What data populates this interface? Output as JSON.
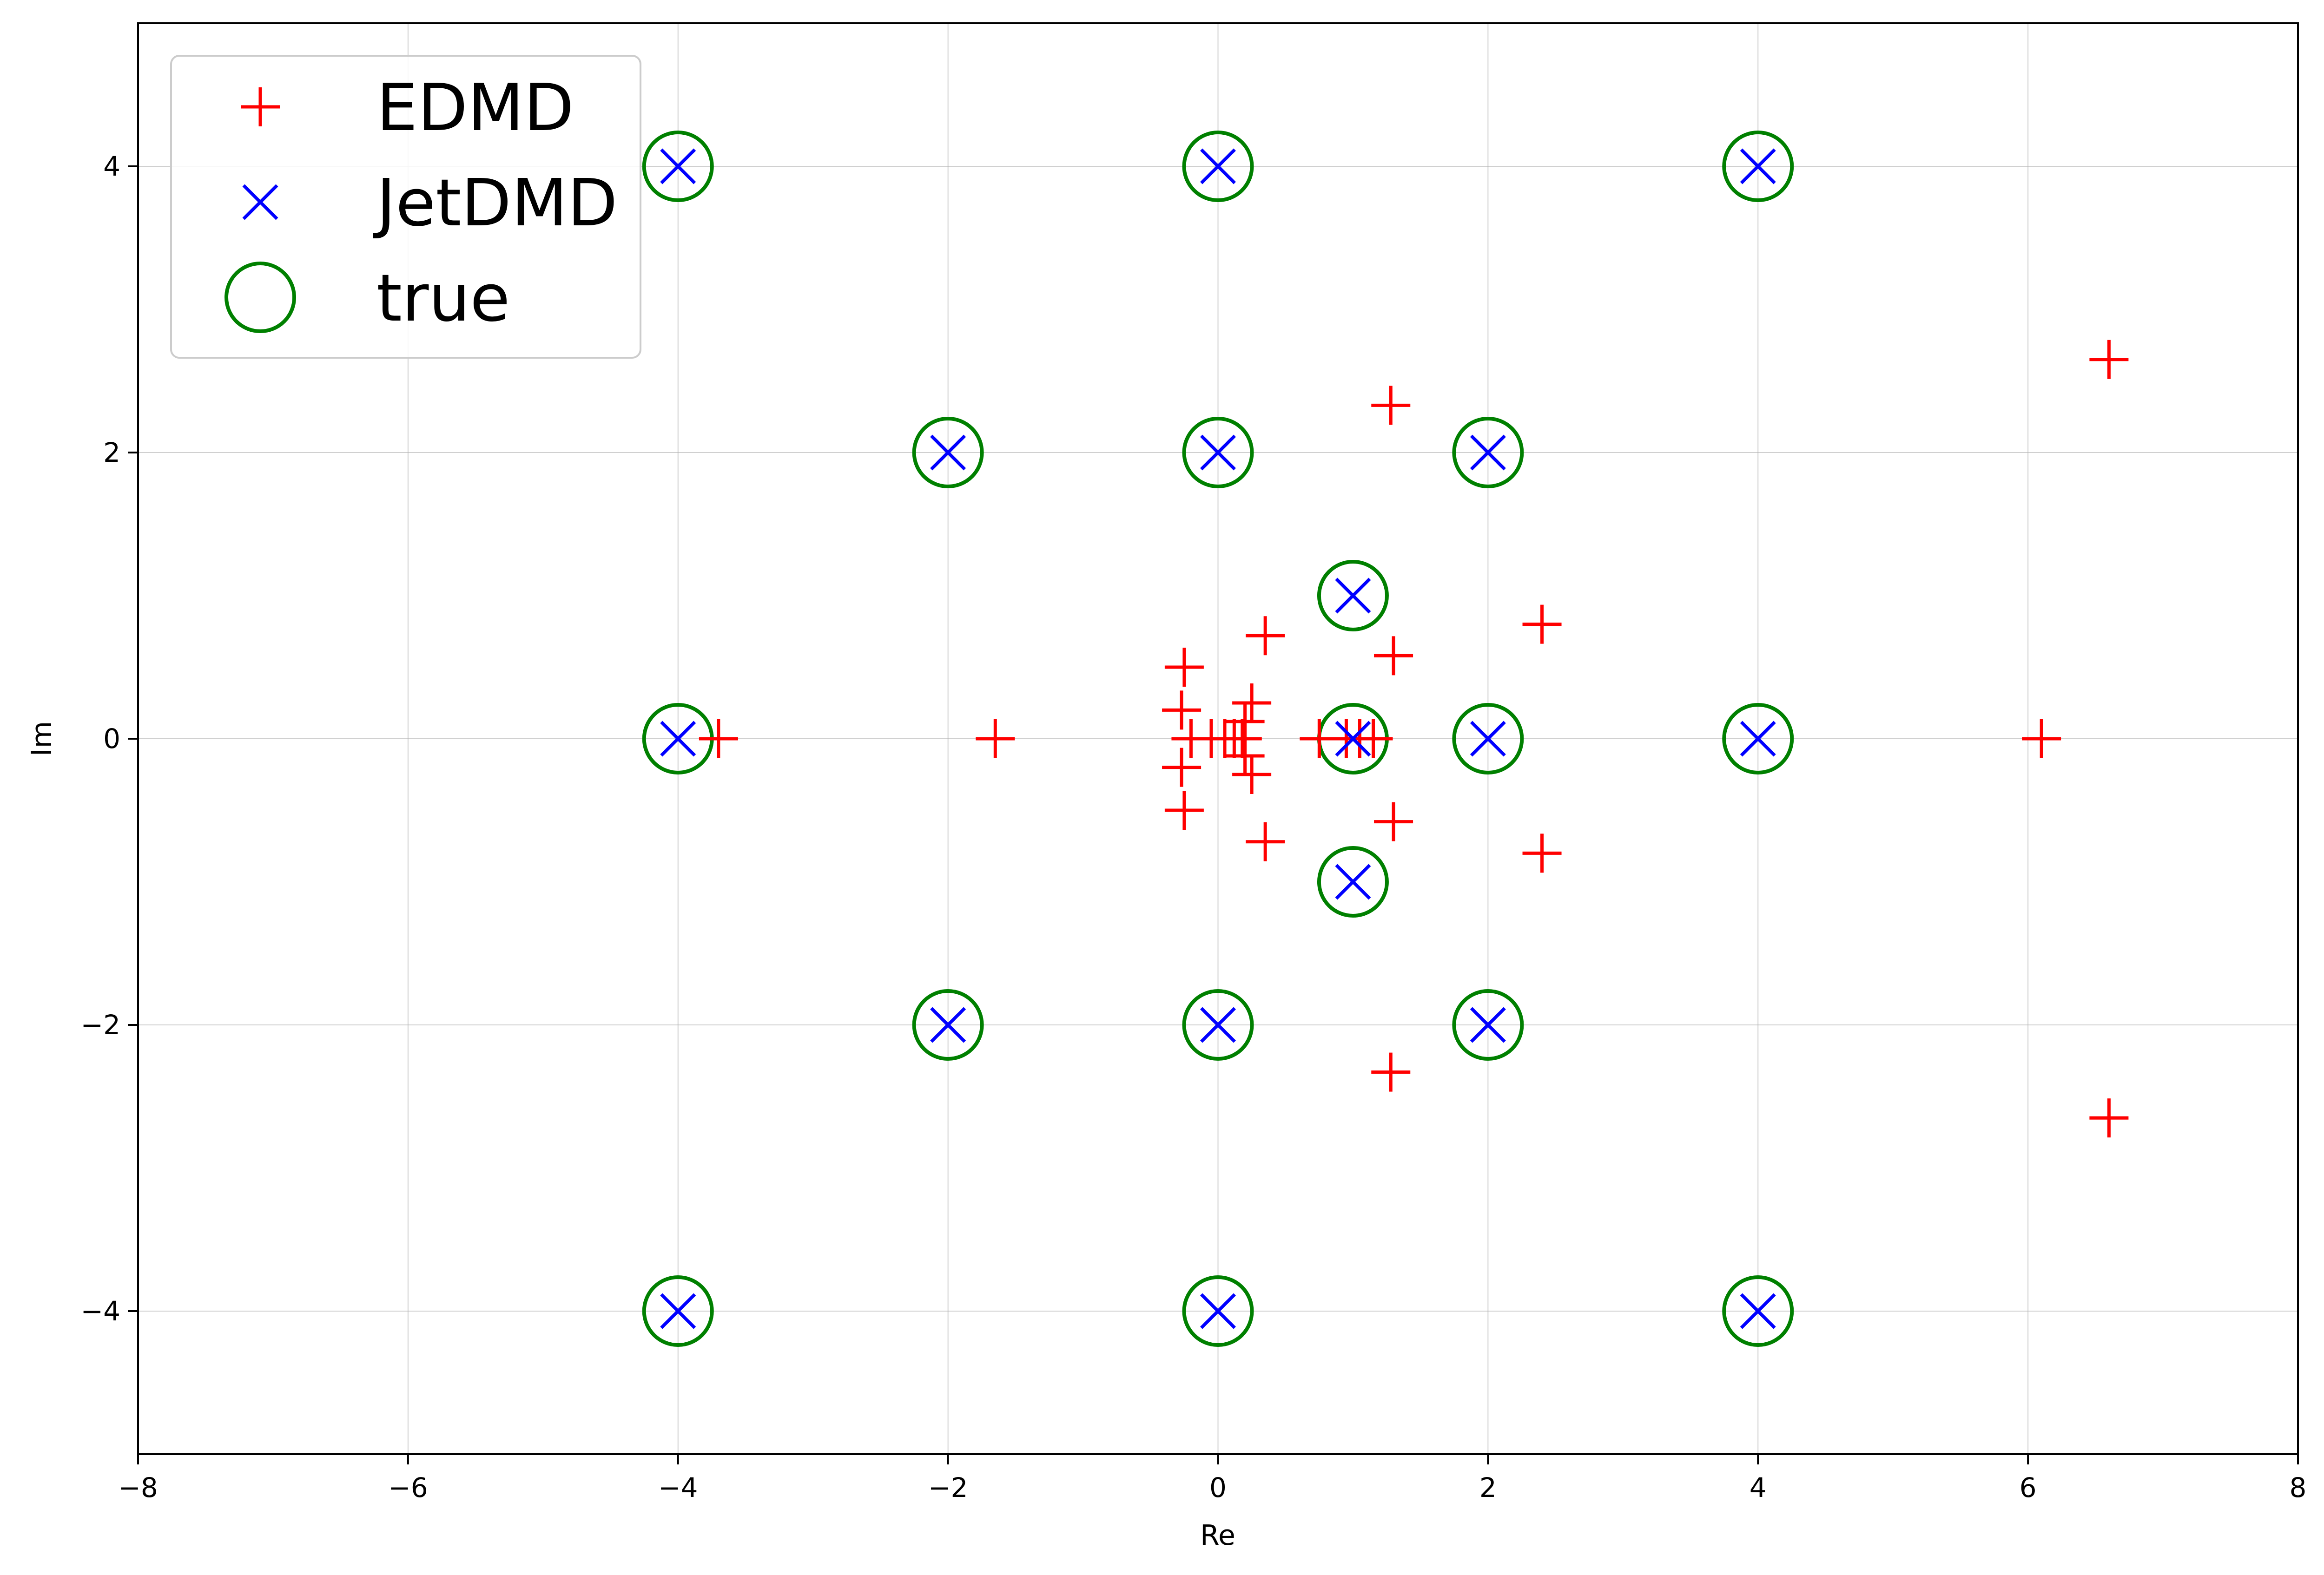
{
  "chart_data": {
    "type": "scatter",
    "xlabel": "Re",
    "ylabel": "Im",
    "xlim": [
      -8,
      8
    ],
    "ylim": [
      -5,
      5
    ],
    "xticks": [
      -8,
      -6,
      -4,
      -2,
      0,
      2,
      4,
      6,
      8
    ],
    "yticks": [
      -4,
      -2,
      0,
      2,
      4
    ],
    "xtick_labels": [
      "−8",
      "−6",
      "−4",
      "−2",
      "0",
      "2",
      "4",
      "6",
      "8"
    ],
    "ytick_labels": [
      "−4",
      "−2",
      "0",
      "2",
      "4"
    ],
    "grid": true,
    "legend_position": "top-left",
    "series": [
      {
        "name": "EDMD",
        "marker": "plus",
        "color": "#ff0000",
        "points": [
          [
            6.6,
            2.65
          ],
          [
            6.6,
            -2.65
          ],
          [
            6.1,
            0
          ],
          [
            1.28,
            2.33
          ],
          [
            1.28,
            -2.33
          ],
          [
            2.4,
            0.8
          ],
          [
            2.4,
            -0.8
          ],
          [
            1.3,
            0.58
          ],
          [
            1.3,
            -0.58
          ],
          [
            0.35,
            0.72
          ],
          [
            0.35,
            -0.72
          ],
          [
            -0.25,
            0.5
          ],
          [
            -0.25,
            -0.5
          ],
          [
            -0.27,
            0.2
          ],
          [
            -0.27,
            -0.2
          ],
          [
            0.25,
            0.25
          ],
          [
            0.25,
            -0.25
          ],
          [
            -3.7,
            0
          ],
          [
            -1.65,
            0
          ],
          [
            -0.2,
            0
          ],
          [
            -0.05,
            0
          ],
          [
            0.05,
            0
          ],
          [
            0.12,
            0
          ],
          [
            0.18,
            0
          ],
          [
            0.2,
            0.12
          ],
          [
            0.2,
            -0.12
          ],
          [
            0.75,
            0
          ],
          [
            0.95,
            0
          ],
          [
            1.05,
            0
          ],
          [
            1.15,
            0
          ]
        ]
      },
      {
        "name": "JetDMD",
        "marker": "x",
        "color": "#0000ff",
        "points": [
          [
            -4,
            4
          ],
          [
            0,
            4
          ],
          [
            4,
            4
          ],
          [
            -2,
            2
          ],
          [
            0,
            2
          ],
          [
            2,
            2
          ],
          [
            1,
            1
          ],
          [
            -4,
            0
          ],
          [
            1,
            0
          ],
          [
            2,
            0
          ],
          [
            4,
            0
          ],
          [
            1,
            -1
          ],
          [
            -2,
            -2
          ],
          [
            0,
            -2
          ],
          [
            2,
            -2
          ],
          [
            -4,
            -4
          ],
          [
            0,
            -4
          ],
          [
            4,
            -4
          ]
        ]
      },
      {
        "name": "true",
        "marker": "circle",
        "color": "#008000",
        "points": [
          [
            -4,
            4
          ],
          [
            0,
            4
          ],
          [
            4,
            4
          ],
          [
            -2,
            2
          ],
          [
            0,
            2
          ],
          [
            2,
            2
          ],
          [
            1,
            1
          ],
          [
            -4,
            0
          ],
          [
            1,
            0
          ],
          [
            2,
            0
          ],
          [
            4,
            0
          ],
          [
            1,
            -1
          ],
          [
            -2,
            -2
          ],
          [
            0,
            -2
          ],
          [
            2,
            -2
          ],
          [
            -4,
            -4
          ],
          [
            0,
            -4
          ],
          [
            4,
            -4
          ]
        ]
      }
    ]
  }
}
